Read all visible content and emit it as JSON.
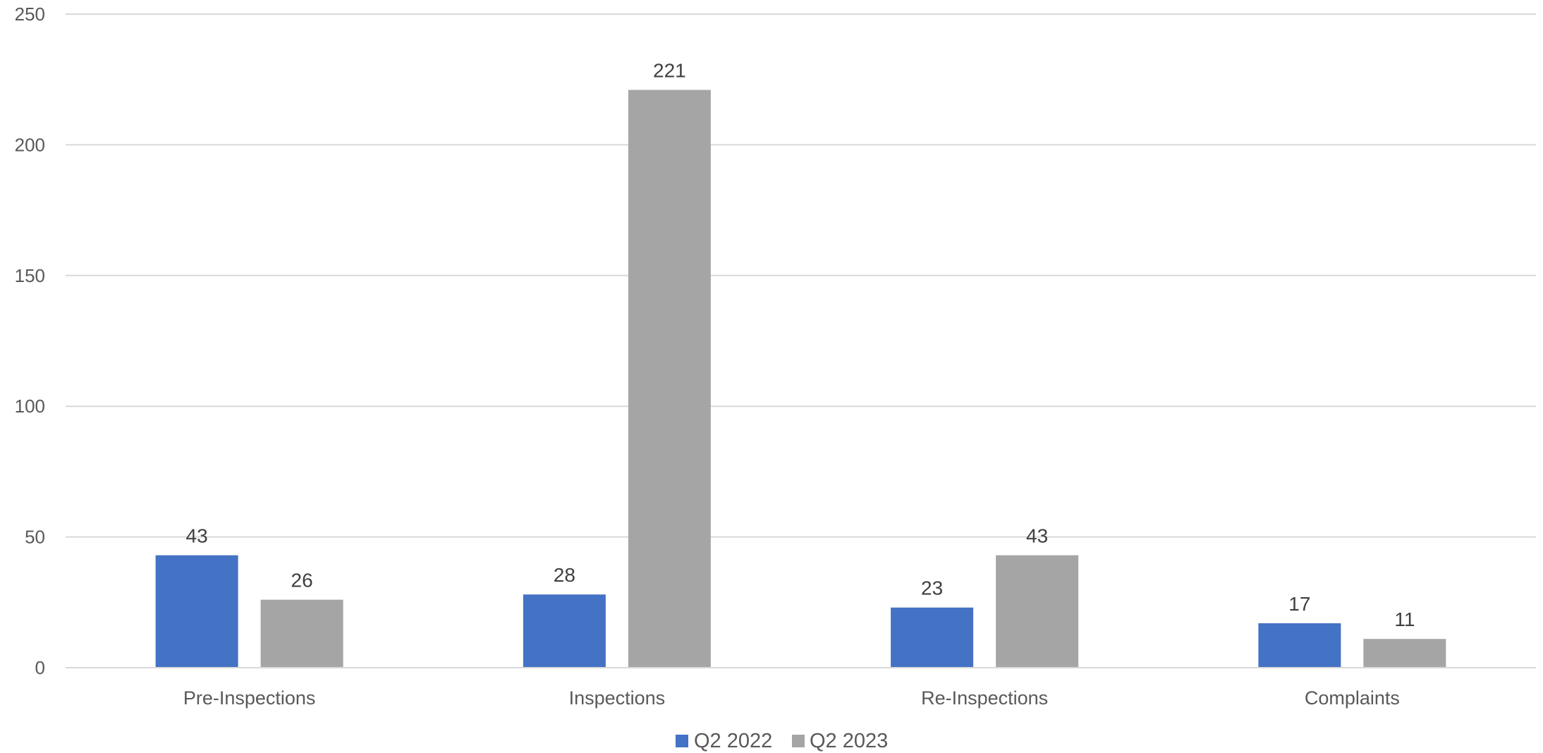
{
  "chart_data": {
    "type": "bar",
    "categories": [
      "Pre-Inspections",
      "Inspections",
      "Re-Inspections",
      "Complaints"
    ],
    "series": [
      {
        "name": "Q2 2022",
        "color": "#4472c4",
        "values": [
          43,
          28,
          23,
          17
        ]
      },
      {
        "name": "Q2 2023",
        "color": "#a5a5a5",
        "values": [
          26,
          221,
          43,
          11
        ]
      }
    ],
    "ylim": [
      0,
      250
    ],
    "yticks": [
      "0",
      "50",
      "100",
      "150",
      "200",
      "250"
    ],
    "grid": true,
    "data_labels": true,
    "legend": "bottom-center",
    "title": "",
    "xlabel": "",
    "ylabel": ""
  }
}
